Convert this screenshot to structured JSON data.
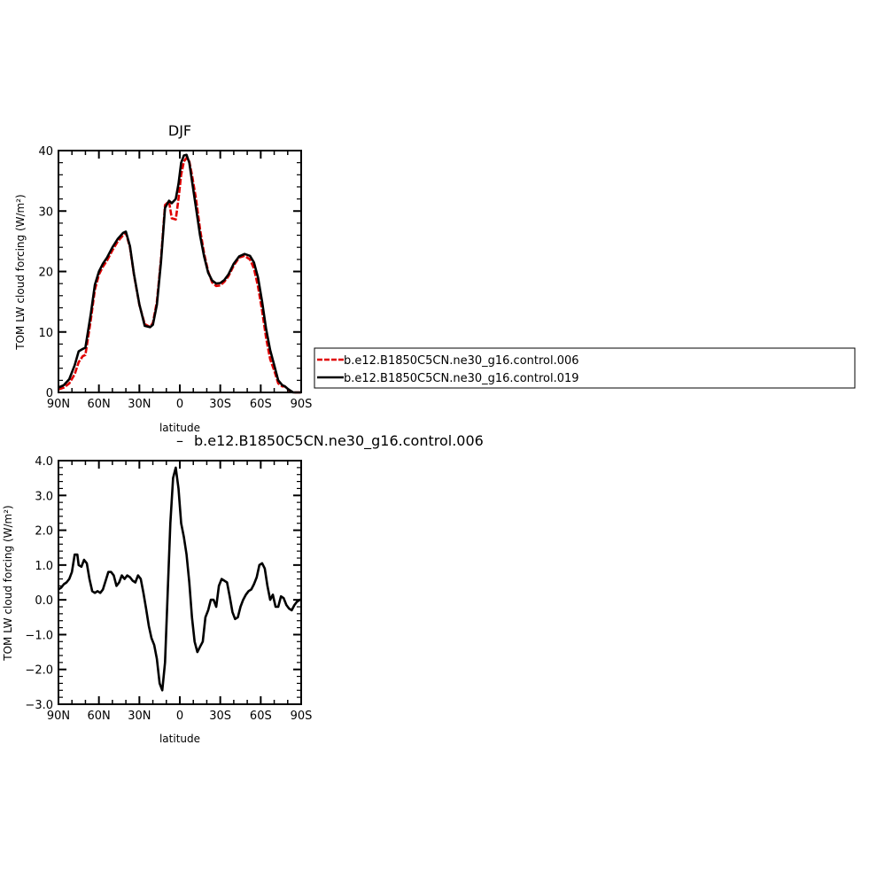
{
  "chart_data": [
    {
      "type": "line",
      "title": "DJF",
      "xlabel": "latitude",
      "ylabel": "TOM LW cloud forcing (W/m²)",
      "xlim": [
        -90,
        90
      ],
      "ylim": [
        0,
        40
      ],
      "x_ticks": [
        -90,
        -60,
        -30,
        0,
        30,
        60,
        90
      ],
      "x_tick_labels": [
        "90N",
        "60N",
        "30N",
        "0",
        "30S",
        "60S",
        "90S"
      ],
      "y_ticks": [
        0,
        10,
        20,
        30,
        40
      ],
      "y_tick_labels": [
        "0",
        "10",
        "20",
        "30",
        "40"
      ],
      "legend_position": "right",
      "series": [
        {
          "name": "b.e12.B1850C5CN.ne30_g16.control.006",
          "color": "#e00000",
          "dash": "dashed",
          "x": [
            -90,
            -86,
            -82,
            -78,
            -75,
            -72,
            -70,
            -66,
            -63,
            -60,
            -57,
            -54,
            -50,
            -46,
            -42,
            -40,
            -37,
            -34,
            -30,
            -26,
            -22,
            -20,
            -17,
            -14,
            -11,
            -8,
            -6,
            -3,
            -1,
            1,
            3,
            5,
            7,
            9,
            12,
            15,
            18,
            21,
            24,
            27,
            30,
            33,
            36,
            40,
            44,
            48,
            52,
            55,
            58,
            61,
            64,
            67,
            70,
            73,
            76,
            78,
            80,
            82,
            84,
            86,
            88,
            90
          ],
          "values": [
            0.5,
            0.8,
            1.5,
            3.0,
            5.0,
            6.0,
            6.2,
            12.0,
            17.0,
            19.5,
            20.8,
            21.8,
            23.5,
            25.0,
            26.0,
            26.4,
            24.0,
            19.5,
            14.5,
            11.3,
            10.8,
            11.5,
            15.0,
            22.0,
            31.0,
            31.6,
            28.8,
            28.6,
            32.0,
            36.0,
            38.2,
            38.8,
            38.2,
            36.0,
            32.0,
            27.0,
            23.0,
            20.0,
            18.2,
            17.6,
            17.7,
            18.3,
            19.2,
            21.0,
            22.3,
            22.6,
            22.0,
            20.5,
            17.5,
            13.5,
            9.0,
            5.5,
            3.6,
            1.5,
            1.0,
            1.0,
            0.5,
            0.2,
            0.0,
            0.0,
            0.0,
            0.0
          ]
        },
        {
          "name": "b.e12.B1850C5CN.ne30_g16.control.019",
          "color": "#000000",
          "dash": "solid",
          "x": [
            -90,
            -86,
            -82,
            -78,
            -75,
            -72,
            -70,
            -66,
            -63,
            -60,
            -57,
            -54,
            -50,
            -46,
            -42,
            -40,
            -37,
            -34,
            -30,
            -26,
            -22,
            -20,
            -17,
            -14,
            -11,
            -8,
            -6,
            -3,
            -1,
            1,
            3,
            5,
            7,
            9,
            12,
            15,
            18,
            21,
            24,
            27,
            30,
            33,
            36,
            40,
            44,
            48,
            52,
            55,
            58,
            61,
            64,
            67,
            70,
            73,
            76,
            78,
            80,
            82,
            84,
            86,
            88,
            90
          ],
          "values": [
            0.8,
            1.2,
            2.2,
            4.5,
            6.8,
            7.2,
            7.4,
            13.0,
            17.8,
            20.0,
            21.3,
            22.3,
            24.0,
            25.4,
            26.4,
            26.6,
            24.2,
            19.6,
            14.6,
            11.0,
            10.8,
            11.2,
            14.5,
            21.5,
            30.5,
            31.7,
            31.3,
            32.0,
            34.5,
            38.0,
            39.2,
            39.3,
            38.0,
            35.0,
            30.5,
            26.0,
            22.5,
            19.8,
            18.5,
            18.0,
            18.1,
            18.6,
            19.5,
            21.3,
            22.5,
            22.9,
            22.6,
            21.5,
            19.0,
            15.0,
            10.5,
            7.0,
            4.5,
            2.0,
            1.2,
            1.0,
            0.6,
            0.3,
            0.0,
            0.0,
            0.0,
            0.0
          ]
        }
      ]
    },
    {
      "type": "line",
      "title": "b.e12.B1850C5CN.ne30_g16.control.006",
      "xlabel": "latitude",
      "ylabel": "TOM LW cloud forcing (W/m²)",
      "xlim": [
        -90,
        90
      ],
      "ylim": [
        -3.0,
        4.0
      ],
      "x_ticks": [
        -90,
        -60,
        -30,
        0,
        30,
        60,
        90
      ],
      "x_tick_labels": [
        "90N",
        "60N",
        "30N",
        "0",
        "30S",
        "60S",
        "90S"
      ],
      "y_ticks": [
        -3,
        -2,
        -1,
        0,
        1,
        2,
        3,
        4
      ],
      "y_tick_labels": [
        "−3.0",
        "−2.0",
        "−1.0",
        "0.0",
        "1.0",
        "2.0",
        "3.0",
        "4.0"
      ],
      "series": [
        {
          "color": "#000000",
          "dash": "solid",
          "x": [
            -90,
            -88,
            -86,
            -84,
            -82,
            -80,
            -78,
            -76,
            -75,
            -73,
            -71,
            -69,
            -67,
            -65,
            -63,
            -61,
            -59,
            -57,
            -55,
            -53,
            -51,
            -49,
            -47,
            -45,
            -43,
            -41,
            -39,
            -37,
            -35,
            -33,
            -31,
            -29,
            -27,
            -25,
            -23,
            -21,
            -19,
            -17,
            -15,
            -13,
            -11,
            -9,
            -7,
            -5,
            -3,
            -1,
            1,
            3,
            5,
            7,
            9,
            11,
            13,
            15,
            17,
            19,
            21,
            23,
            25,
            27,
            29,
            31,
            33,
            35,
            37,
            39,
            41,
            43,
            45,
            47,
            49,
            51,
            53,
            55,
            57,
            59,
            61,
            63,
            65,
            67,
            69,
            71,
            73,
            75,
            77,
            79,
            81,
            83,
            85,
            87,
            89,
            90
          ],
          "values": [
            0.3,
            0.35,
            0.45,
            0.5,
            0.6,
            0.8,
            1.3,
            1.3,
            1.0,
            0.95,
            1.15,
            1.05,
            0.6,
            0.25,
            0.2,
            0.25,
            0.2,
            0.3,
            0.55,
            0.8,
            0.8,
            0.7,
            0.4,
            0.5,
            0.7,
            0.6,
            0.7,
            0.65,
            0.55,
            0.5,
            0.7,
            0.6,
            0.2,
            -0.25,
            -0.75,
            -1.1,
            -1.3,
            -1.7,
            -2.4,
            -2.6,
            -1.8,
            0.2,
            2.2,
            3.5,
            3.8,
            3.2,
            2.2,
            1.8,
            1.3,
            0.5,
            -0.5,
            -1.2,
            -1.5,
            -1.35,
            -1.2,
            -0.5,
            -0.3,
            0.0,
            0.0,
            -0.2,
            0.4,
            0.6,
            0.55,
            0.5,
            0.1,
            -0.35,
            -0.55,
            -0.5,
            -0.2,
            0.0,
            0.15,
            0.25,
            0.3,
            0.45,
            0.65,
            1.0,
            1.05,
            0.9,
            0.4,
            0.0,
            0.15,
            -0.2,
            -0.2,
            0.1,
            0.05,
            -0.15,
            -0.25,
            -0.3,
            -0.15,
            -0.05,
            0.0,
            0.0
          ]
        }
      ]
    }
  ]
}
